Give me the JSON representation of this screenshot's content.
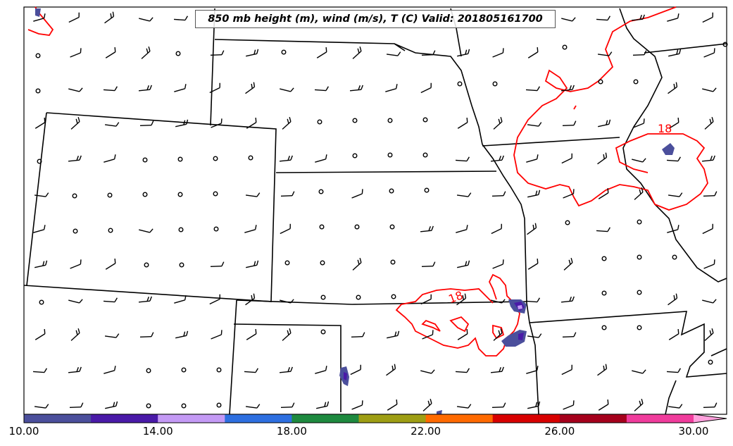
{
  "title": "850 mb height (m), wind (m/s), T (C) Valid: 201805161700",
  "contour_labels": [
    {
      "text": "18",
      "color": "#ff0000"
    },
    {
      "text": "18",
      "color": "#ff0000"
    }
  ],
  "colorbar": {
    "ticks": [
      "10.00",
      "14.00",
      "18.00",
      "22.00",
      "26.00",
      "30.00"
    ],
    "colors": [
      "#4b4f9c",
      "#4a1aa8",
      "#c49af5",
      "#2e6fe0",
      "#1e8a3f",
      "#9e9e14",
      "#ff6a00",
      "#d80000",
      "#a5001c",
      "#f03c9c",
      "#ffa0dc"
    ],
    "extend": "max"
  },
  "map_style": {
    "border_color": "#000000",
    "temperature_contour_color": "#ff0000",
    "wind_barb_color": "#000000"
  },
  "icons": [
    "wind-barb-icon",
    "calm-wind-circle-icon"
  ]
}
